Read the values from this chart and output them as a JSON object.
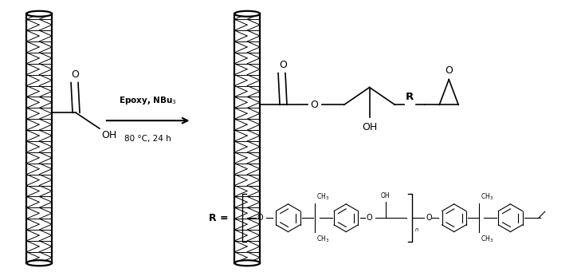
{
  "background_color": "#ffffff",
  "figsize": [
    7.29,
    3.46
  ],
  "dpi": 100,
  "arrow_text_top": "Epoxy, NBu$_3$",
  "arrow_text_bottom": "80 °C, 24 h",
  "text_color": "#000000",
  "xlim": [
    0,
    7.29
  ],
  "ylim": [
    0,
    3.46
  ]
}
